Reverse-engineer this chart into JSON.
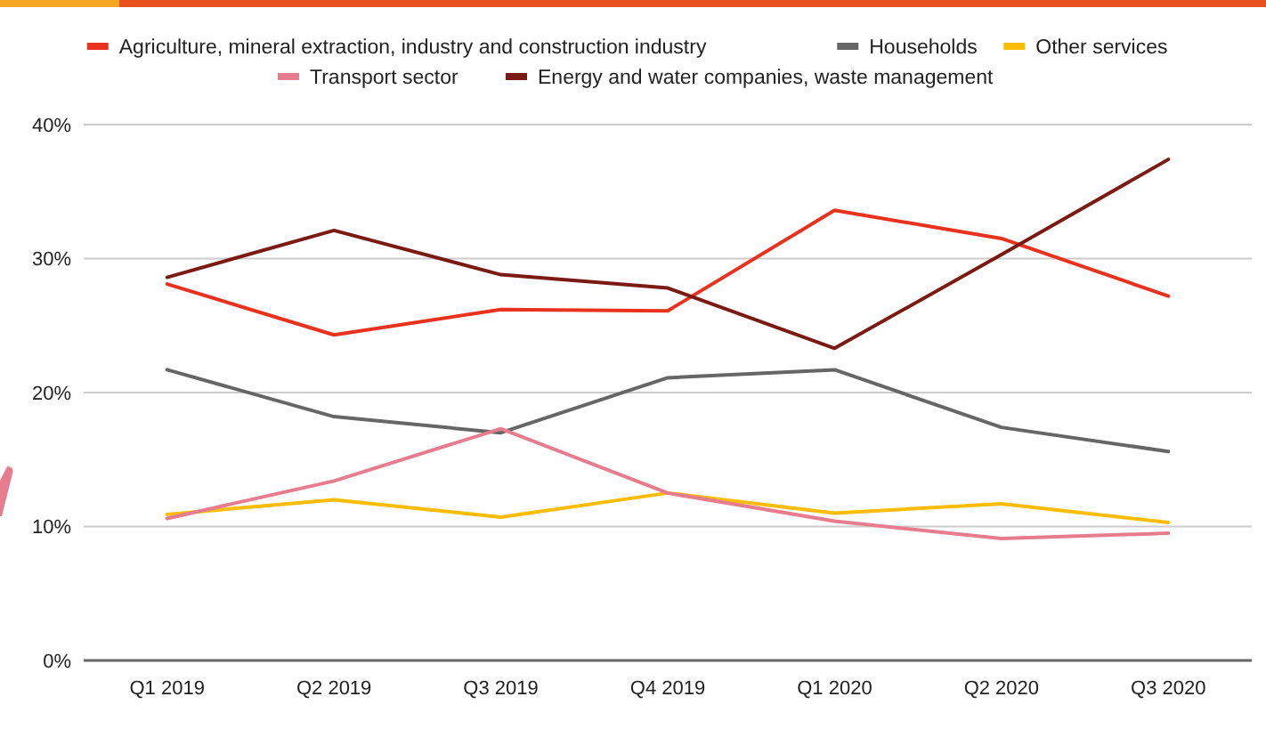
{
  "chart_data": {
    "type": "line",
    "categories": [
      "Q1 2019",
      "Q2 2019",
      "Q3 2019",
      "Q4 2019",
      "Q1 2020",
      "Q2 2020",
      "Q3 2020"
    ],
    "series": [
      {
        "name": "Agriculture, mineral extraction, industry and construction industry",
        "color": "#e8321e",
        "values": [
          28.1,
          24.3,
          26.2,
          26.1,
          33.6,
          31.5,
          27.2
        ]
      },
      {
        "name": "Households",
        "color": "#666666",
        "values": [
          21.7,
          18.2,
          17.0,
          21.1,
          21.7,
          17.4,
          15.6
        ]
      },
      {
        "name": "Other services",
        "color": "#fbbc04",
        "values": [
          10.9,
          12.0,
          10.7,
          12.5,
          11.0,
          11.7,
          10.3
        ]
      },
      {
        "name": "Transport sector",
        "color": "#e67c8e",
        "values": [
          10.6,
          13.4,
          17.3,
          12.5,
          10.4,
          9.1,
          9.5
        ]
      },
      {
        "name": "Energy and water companies, waste management",
        "color": "#7b1a12",
        "values": [
          28.6,
          32.1,
          28.8,
          27.8,
          23.3,
          30.3,
          37.4
        ]
      }
    ],
    "ylim": [
      0,
      40
    ],
    "yticks": [
      {
        "value": 0,
        "label": "0%"
      },
      {
        "value": 10,
        "label": "10%"
      },
      {
        "value": 20,
        "label": "20%"
      },
      {
        "value": 30,
        "label": "30%"
      },
      {
        "value": 40,
        "label": "40%"
      }
    ],
    "grid": "y",
    "legend": "top",
    "marker": "none",
    "line_style": "solid"
  }
}
